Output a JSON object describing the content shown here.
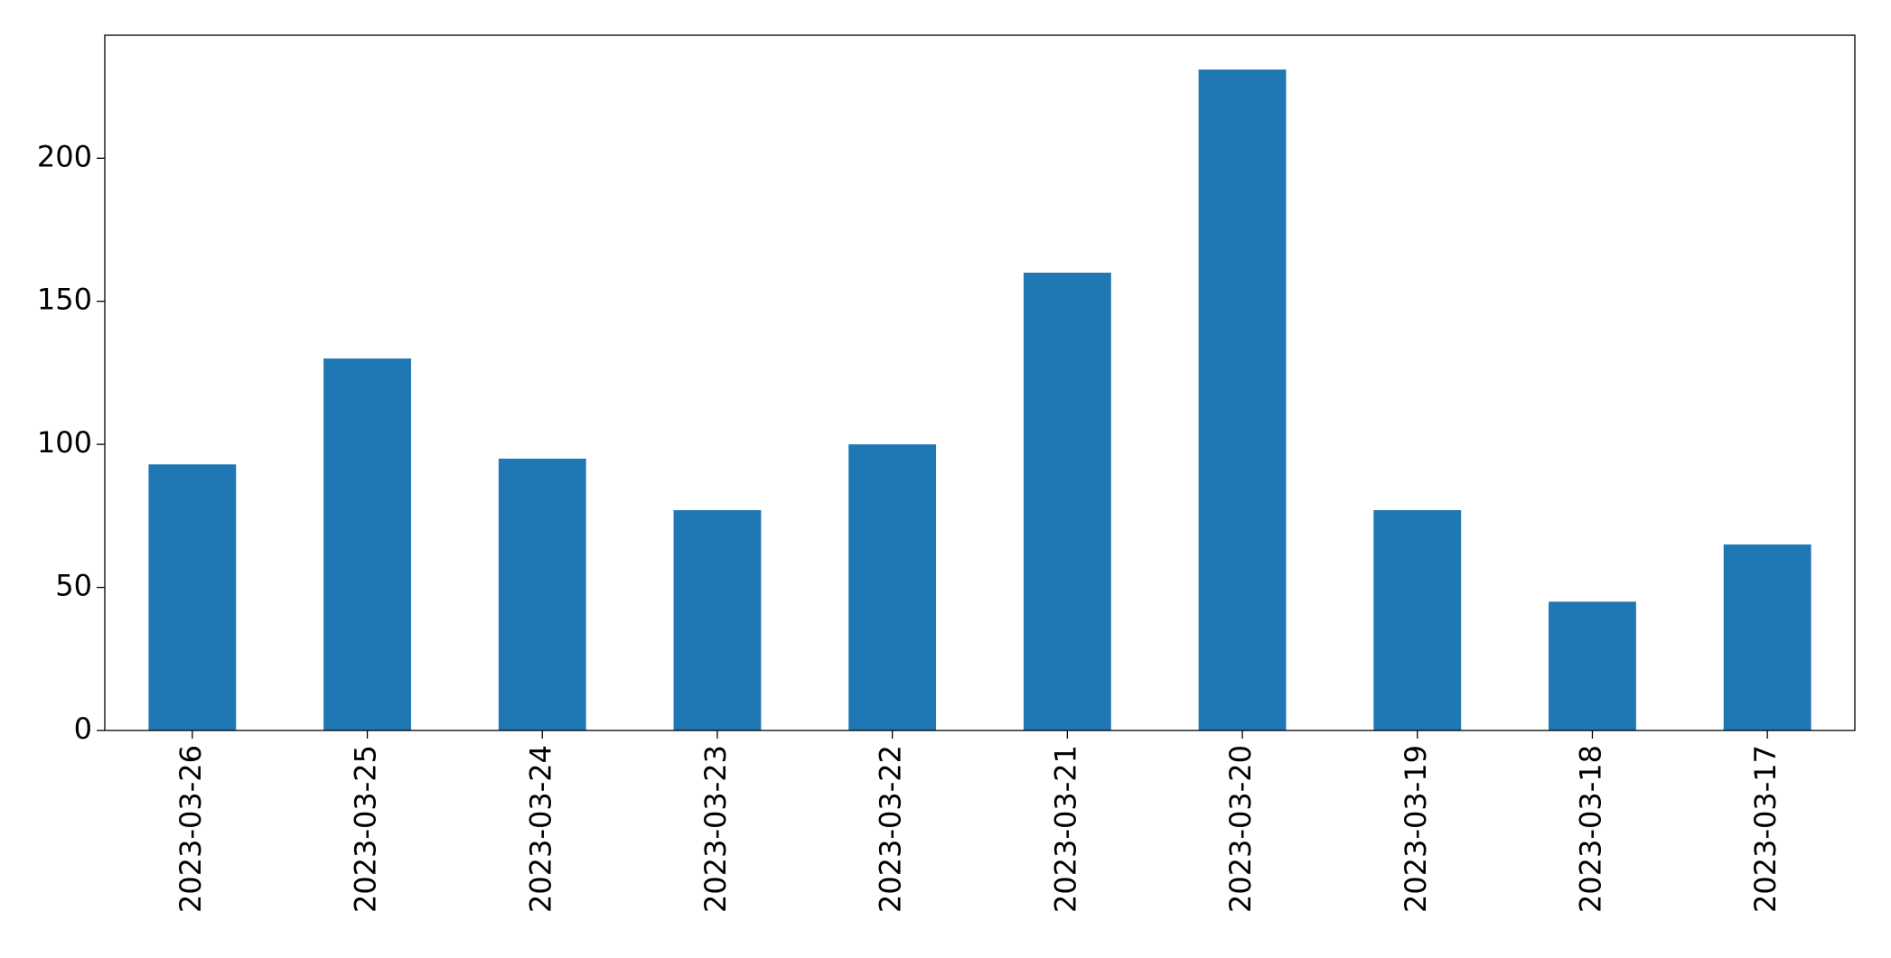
{
  "chart_data": {
    "type": "bar",
    "categories": [
      "2023-03-26",
      "2023-03-25",
      "2023-03-24",
      "2023-03-23",
      "2023-03-22",
      "2023-03-21",
      "2023-03-20",
      "2023-03-19",
      "2023-03-18",
      "2023-03-17"
    ],
    "values": [
      93,
      130,
      95,
      77,
      100,
      160,
      231,
      77,
      45,
      65
    ],
    "color": "#1f77b4",
    "ylim": [
      0,
      243
    ],
    "yticks": [
      0,
      50,
      100,
      150,
      200
    ],
    "grid": false
  }
}
